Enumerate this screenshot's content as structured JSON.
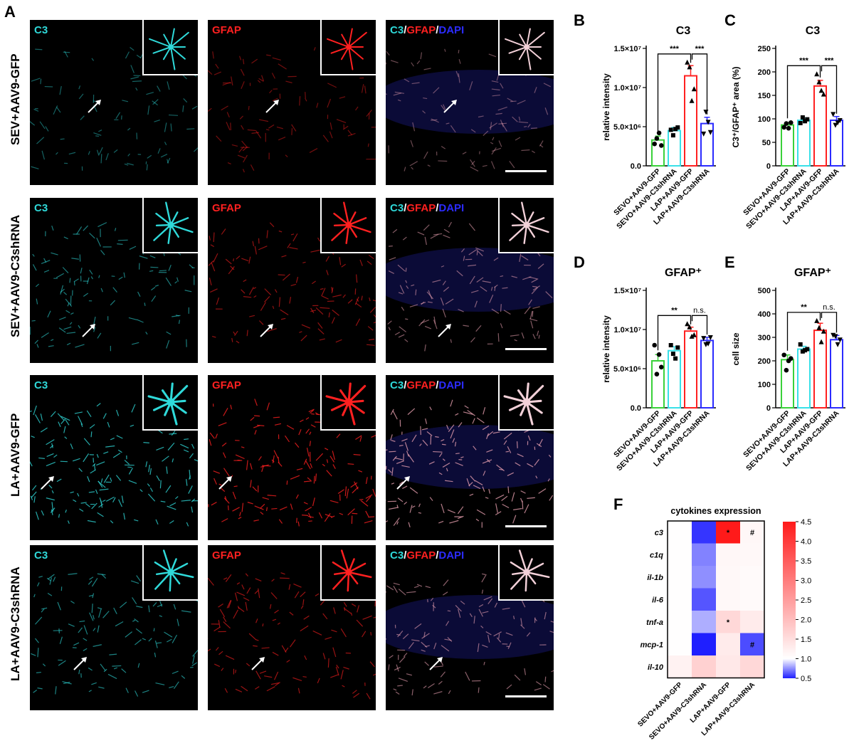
{
  "panel_letters": {
    "a": "A",
    "b": "B",
    "c": "C",
    "d": "D",
    "e": "E",
    "f": "F"
  },
  "rows": [
    {
      "label": "SEV+AAV9-GFP"
    },
    {
      "label": "SEV+AAV9-C3shRNA"
    },
    {
      "label": "LA+AAV9-GFP"
    },
    {
      "label": "LA+AAV9-C3shRNA"
    }
  ],
  "channels": {
    "c3": "C3",
    "gfap": "GFAP",
    "slash": "/",
    "dapi": "DAPI"
  },
  "colors": {
    "cyan": "#2fd9d9",
    "red": "#ff2020",
    "blue": "#2b2bff",
    "green": "#3ad13a",
    "bar_c3sh": "#39e0e8"
  },
  "group_labels": [
    "SEVO+AAV9-GFP",
    "SEVO+AAV9-C3shRNA",
    "LAP+AAV9-GFP",
    "LAP+AAV9-C3shRNA"
  ],
  "chart_data": [
    {
      "type": "bar",
      "panel": "B",
      "title": "C3",
      "ylabel": "relative intensity",
      "ylim": [
        0,
        15000000
      ],
      "yticks": [
        "0.0",
        "5.0×10⁶",
        "1.0×10⁷",
        "1.5×10⁷"
      ],
      "ytick_values": [
        0,
        5000000,
        10000000,
        15000000
      ],
      "values": [
        3300000,
        4500000,
        11500000,
        5400000
      ],
      "errors": [
        500000,
        400000,
        1300000,
        800000
      ],
      "points": [
        [
          2800000,
          3500000,
          4200000,
          2600000
        ],
        [
          4600000,
          3900000,
          4700000,
          4900000
        ],
        [
          13200000,
          12600000,
          8300000,
          9800000
        ],
        [
          4100000,
          6900000,
          5600000,
          4300000
        ]
      ],
      "markers": [
        "circle",
        "square",
        "triangle",
        "triangle-down"
      ],
      "significance": [
        {
          "text": "***"
        },
        {
          "text": "***"
        }
      ]
    },
    {
      "type": "bar",
      "panel": "C",
      "title": "C3",
      "ylabel": "C3⁺/GFAP⁺ area (%)",
      "ylim": [
        0,
        250
      ],
      "yticks": [
        "0",
        "50",
        "100",
        "150",
        "200",
        "250"
      ],
      "ytick_values": [
        0,
        50,
        100,
        150,
        200,
        250
      ],
      "values": [
        87,
        97,
        170,
        97
      ],
      "errors": [
        5,
        5,
        12,
        8
      ],
      "points": [
        [
          82,
          90,
          80,
          92
        ],
        [
          91,
          103,
          95,
          99
        ],
        [
          195,
          178,
          160,
          152
        ],
        [
          110,
          87,
          92,
          97
        ]
      ],
      "markers": [
        "circle",
        "square",
        "triangle",
        "triangle-down"
      ],
      "significance": [
        {
          "text": "***"
        },
        {
          "text": "***"
        }
      ]
    },
    {
      "type": "bar",
      "panel": "D",
      "title": "GFAP⁺",
      "ylabel": "relative intensity",
      "ylim": [
        0,
        15000000
      ],
      "yticks": [
        "0.0",
        "5.0×10⁶",
        "1.0×10⁷",
        "1.5×10⁷"
      ],
      "ytick_values": [
        0,
        5000000,
        10000000,
        15000000
      ],
      "values": [
        6000000,
        7300000,
        9800000,
        8600000
      ],
      "errors": [
        800000,
        500000,
        500000,
        400000
      ],
      "points": [
        [
          8000000,
          4300000,
          6800000,
          5200000
        ],
        [
          8000000,
          6900000,
          6300000,
          7700000
        ],
        [
          10700000,
          10300000,
          9100000,
          9300000
        ],
        [
          8900000,
          8100000,
          8200000,
          9000000
        ]
      ],
      "markers": [
        "circle",
        "square",
        "triangle",
        "triangle-down"
      ],
      "significance": [
        {
          "text": "**"
        },
        {
          "text": "n.s."
        }
      ]
    },
    {
      "type": "bar",
      "panel": "E",
      "title": "GFAP⁺",
      "ylabel": "cell size",
      "ylim": [
        0,
        500
      ],
      "yticks": [
        "0",
        "100",
        "200",
        "300",
        "400",
        "500"
      ],
      "ytick_values": [
        0,
        100,
        200,
        300,
        400,
        500
      ],
      "values": [
        205,
        250,
        330,
        290
      ],
      "errors": [
        20,
        12,
        30,
        18
      ],
      "points": [
        [
          225,
          160,
          200,
          210
        ],
        [
          270,
          240,
          245,
          250
        ],
        [
          370,
          340,
          280,
          325
        ],
        [
          310,
          305,
          270,
          290
        ]
      ],
      "markers": [
        "circle",
        "square",
        "triangle",
        "triangle-down"
      ],
      "significance": [
        {
          "text": "**"
        },
        {
          "text": "n.s."
        }
      ]
    },
    {
      "type": "heatmap",
      "panel": "F",
      "title": "cytokines expression",
      "rows": [
        "c3",
        "c1q",
        "il-1b",
        "il-6",
        "tnf-a",
        "mcp-1",
        "il-10"
      ],
      "columns": [
        "SEVO+AAV9-GFP",
        "SEVO+AAV9-C3shRNA",
        "LAP+AAV9-GFP",
        "LAP+AAV9-C3shRNA"
      ],
      "values": [
        [
          1.02,
          0.55,
          4.5,
          1.12
        ],
        [
          1.02,
          0.72,
          1.12,
          1.1
        ],
        [
          1.02,
          0.75,
          1.1,
          1.07
        ],
        [
          1.02,
          0.62,
          1.1,
          1.08
        ],
        [
          1.02,
          0.82,
          1.6,
          1.3
        ],
        [
          1.02,
          0.3,
          1.3,
          0.6
        ],
        [
          1.2,
          1.7,
          1.35,
          1.6
        ]
      ],
      "annotations": [
        [
          "",
          "",
          "*",
          "#"
        ],
        [
          "",
          "",
          "",
          ""
        ],
        [
          "",
          "",
          "",
          ""
        ],
        [
          "",
          "",
          "",
          ""
        ],
        [
          "",
          "",
          "*",
          ""
        ],
        [
          "",
          "",
          "",
          "#"
        ],
        [
          "",
          "",
          "",
          ""
        ]
      ],
      "colorbar": {
        "min": 0.5,
        "max": 4.5,
        "ticks": [
          "4.5",
          "4.0",
          "3.5",
          "3.0",
          "2.5",
          "2.0",
          "1.5",
          "1.0",
          "0.5"
        ],
        "low": "#1f1fff",
        "mid": "#ffffff",
        "high": "#ff1a1a"
      }
    }
  ]
}
